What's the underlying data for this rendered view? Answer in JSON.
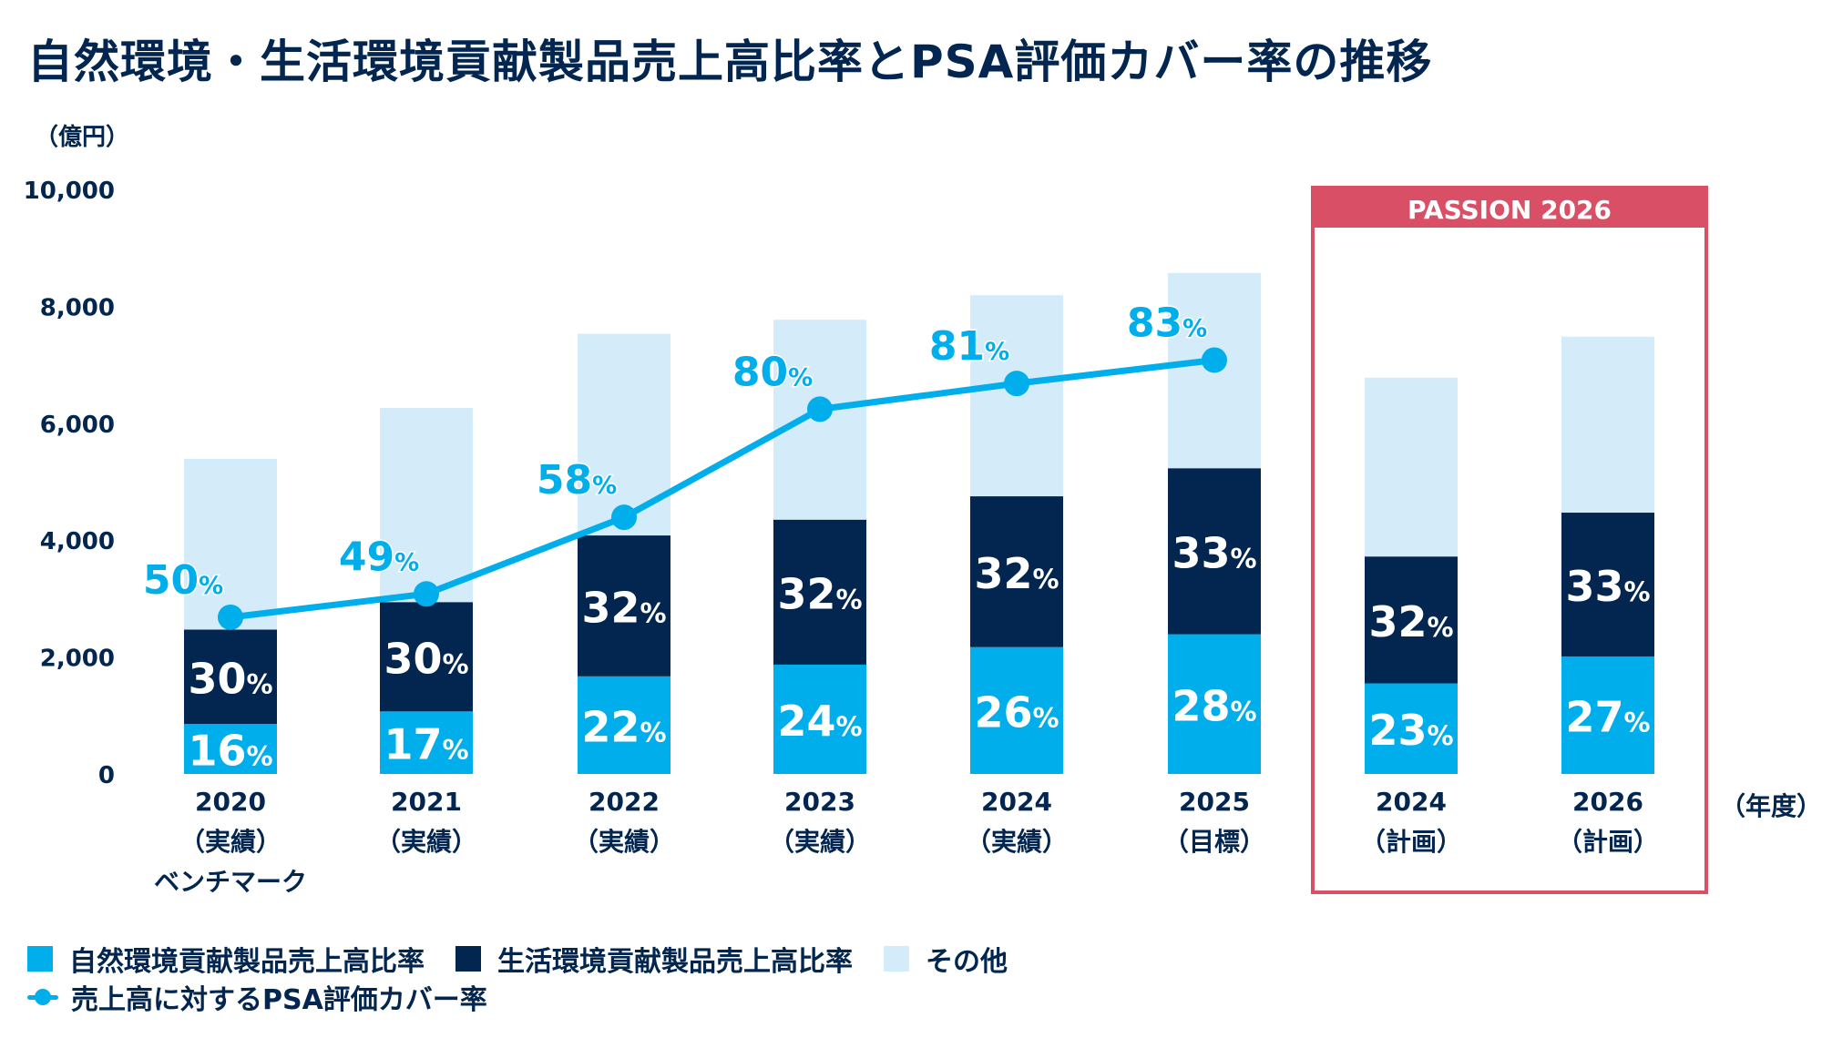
{
  "chart_data": {
    "type": "bar",
    "stacked": true,
    "title": "自然環境・生活環境貢献製品売上高比率とPSA評価カバー率の推移",
    "ylabel": "（億円）",
    "xlabel": "（年度）",
    "ylim": [
      0,
      10000
    ],
    "yticks": [
      "0",
      "2,000",
      "4,000",
      "6,000",
      "8,000",
      "10,000"
    ],
    "ytick_values": [
      0,
      2000,
      4000,
      6000,
      8000,
      10000
    ],
    "grid": false,
    "categories": [
      {
        "year": "2020",
        "sub": "（実績）",
        "note": "ベンチマーク"
      },
      {
        "year": "2021",
        "sub": "（実績）",
        "note": ""
      },
      {
        "year": "2022",
        "sub": "（実績）",
        "note": ""
      },
      {
        "year": "2023",
        "sub": "（実績）",
        "note": ""
      },
      {
        "year": "2024",
        "sub": "（実績）",
        "note": ""
      },
      {
        "year": "2025",
        "sub": "（目標）",
        "note": ""
      },
      {
        "year": "2024",
        "sub": "（計画）",
        "note": ""
      },
      {
        "year": "2026",
        "sub": "（計画）",
        "note": ""
      }
    ],
    "series": [
      {
        "name": "自然環境貢献製品売上高比率",
        "color": "#00AEEB",
        "values": [
          855,
          1070,
          1670,
          1870,
          2170,
          2390,
          1550,
          2010
        ],
        "labels": [
          "16",
          "17",
          "22",
          "24",
          "26",
          "28",
          "23",
          "27"
        ]
      },
      {
        "name": "生活環境貢献製品売上高比率",
        "color": "#02264F",
        "values": [
          1615,
          1870,
          2410,
          2480,
          2580,
          2840,
          2170,
          2460
        ],
        "labels": [
          "30",
          "30",
          "32",
          "32",
          "32",
          "33",
          "32",
          "33"
        ]
      },
      {
        "name": "その他",
        "color": "#D4EBF9",
        "values": [
          2920,
          3320,
          3450,
          3420,
          3440,
          3340,
          3060,
          3010
        ],
        "labels": [
          "",
          "",
          "",
          "",
          "",
          "",
          "",
          ""
        ]
      }
    ],
    "line_series": {
      "name": "売上高に対するPSA評価カバー率",
      "color": "#00AEEB",
      "plot_values": [
        2680,
        3080,
        4390,
        6240,
        6680,
        7080
      ],
      "labels": [
        "50",
        "49",
        "58",
        "80",
        "81",
        "83"
      ]
    },
    "percent_suffix": "%",
    "highlight_box": {
      "label": "PASSION 2026",
      "color": "#D94F65",
      "categories": [
        6,
        7
      ]
    },
    "legend_position": "bottom-left"
  },
  "legend": {
    "items": [
      {
        "label": "自然環境貢献製品売上高比率",
        "color": "#00AEEB"
      },
      {
        "label": "生活環境貢献製品売上高比率",
        "color": "#02264F"
      },
      {
        "label": "その他",
        "color": "#D4EBF9"
      }
    ],
    "line_item": {
      "label": "売上高に対するPSA評価カバー率",
      "color": "#00AEEB"
    }
  }
}
